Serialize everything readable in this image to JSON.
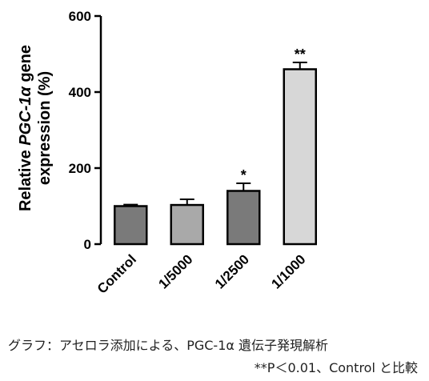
{
  "chart_data": {
    "type": "bar",
    "ylabel_line1_prefix": "Relative ",
    "ylabel_line1_italic": "PGC-1α",
    "ylabel_line1_suffix": " gene",
    "ylabel_line2": "expression (%)",
    "categories": [
      "Control",
      "1/5000",
      "1/2500",
      "1/1000"
    ],
    "values": [
      100,
      103,
      140,
      460
    ],
    "errors": [
      4,
      15,
      20,
      18
    ],
    "significance": [
      "",
      "",
      "*",
      "**"
    ],
    "ylim": [
      0,
      600
    ],
    "yticks": [
      0,
      200,
      400,
      600
    ],
    "bar_colors": [
      "#7a7a7a",
      "#a9a9a9",
      "#7a7a7a",
      "#d7d7d7"
    ]
  },
  "caption": {
    "line1": "グラフ：アセロラ添加による、PGC-1α 遺伝子発現解析",
    "line2": "**P＜0.01、Control と比較"
  }
}
